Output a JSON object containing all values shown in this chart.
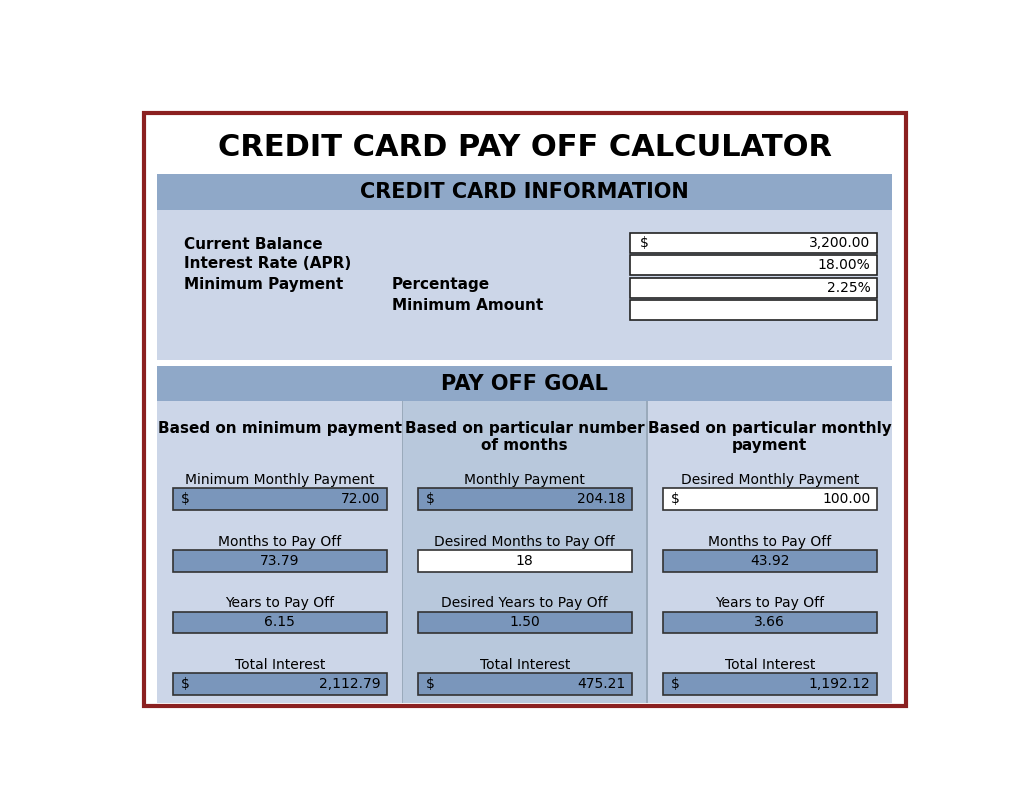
{
  "title": "CREDIT CARD PAY OFF CALCULATOR",
  "section1_title": "CREDIT CARD INFORMATION",
  "section2_title": "PAY OFF GOAL",
  "info_labels": [
    "Current Balance",
    "Interest Rate (APR)",
    "Minimum Payment"
  ],
  "info_sublabels": [
    "Percentage",
    "Minimum Amount"
  ],
  "col1_header": "Based on minimum payment",
  "col2_header": "Based on particular number\nof months",
  "col3_header": "Based on particular monthly\npayment",
  "col1_rows": [
    {
      "label": "Minimum Monthly Payment",
      "dollar": "$",
      "value": "72.00",
      "bg": "#7a96bb"
    },
    {
      "label": "Months to Pay Off",
      "value": "73.79",
      "bg": "#7a96bb"
    },
    {
      "label": "Years to Pay Off",
      "value": "6.15",
      "bg": "#7a96bb"
    },
    {
      "label": "Total Interest",
      "dollar": "$",
      "value": "2,112.79",
      "bg": "#7a96bb"
    }
  ],
  "col2_rows": [
    {
      "label": "Monthly Payment",
      "dollar": "$",
      "value": "204.18",
      "bg": "#7a96bb"
    },
    {
      "label": "Desired Months to Pay Off",
      "value": "18",
      "bg": "#ffffff"
    },
    {
      "label": "Desired Years to Pay Off",
      "value": "1.50",
      "bg": "#7a96bb"
    },
    {
      "label": "Total Interest",
      "dollar": "$",
      "value": "475.21",
      "bg": "#7a96bb"
    }
  ],
  "col3_rows": [
    {
      "label": "Desired Monthly Payment",
      "dollar": "$",
      "value": "100.00",
      "bg": "#ffffff"
    },
    {
      "label": "Months to Pay Off",
      "value": "43.92",
      "bg": "#7a96bb"
    },
    {
      "label": "Years to Pay Off",
      "value": "3.66",
      "bg": "#7a96bb"
    },
    {
      "label": "Total Interest",
      "dollar": "$",
      "value": "1,192.12",
      "bg": "#7a96bb"
    }
  ],
  "bg_light_blue": "#ccd6e8",
  "bg_medium_blue": "#8fa8c8",
  "bg_mid2_blue": "#b8c8dc",
  "bg_white": "#ffffff",
  "border_color": "#8b2020",
  "text_dark": "#000000",
  "cell_fill_blue": "#7a96bb",
  "info_dollar": "$",
  "info_balance": "3,200.00",
  "info_rate": "18.00%",
  "info_pct": "2.25%"
}
